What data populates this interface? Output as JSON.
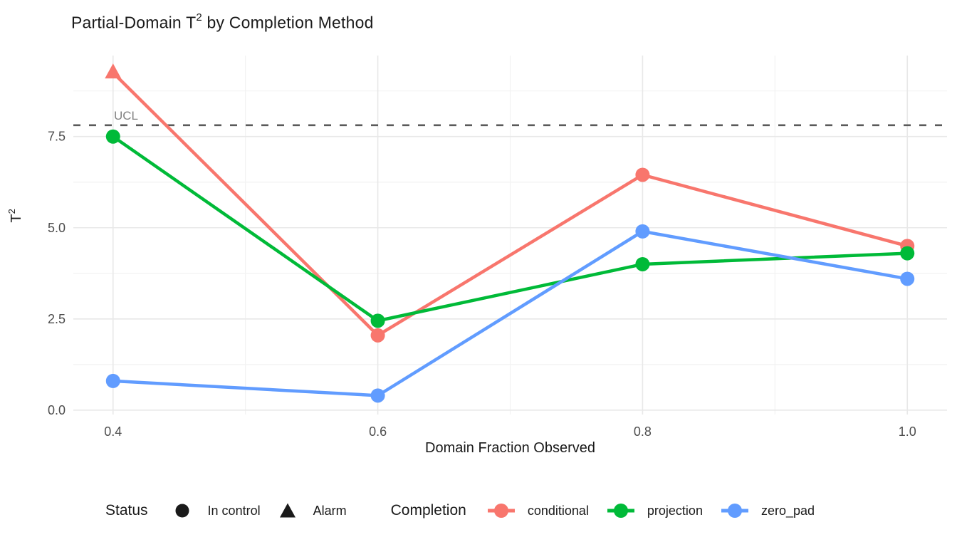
{
  "title": {
    "prefix": "Partial-Domain T",
    "superscript": "2",
    "suffix": " by Completion Method"
  },
  "axes": {
    "x": {
      "title": "Domain Fraction Observed",
      "tick_labels": [
        "0.4",
        "0.6",
        "0.8",
        "1.0"
      ]
    },
    "y": {
      "title_base": "T",
      "title_superscript": "2",
      "tick_labels": [
        "0.0",
        "2.5",
        "5.0",
        "7.5"
      ]
    }
  },
  "reference": {
    "label": "UCL",
    "value": 7.81,
    "line_color": "#5A5A5A",
    "label_color": "#828282"
  },
  "legend": {
    "status": {
      "title": "Status",
      "marker_color": "#1A1A1A",
      "items": [
        {
          "label": "In control",
          "marker": "circle"
        },
        {
          "label": "Alarm",
          "marker": "triangle"
        }
      ]
    },
    "completion": {
      "title": "Completion",
      "items": [
        {
          "label": "conditional",
          "color": "#F8766D"
        },
        {
          "label": "projection",
          "color": "#00BA38"
        },
        {
          "label": "zero_pad",
          "color": "#619CFF"
        }
      ]
    }
  },
  "chart_data": {
    "type": "line",
    "title": "Partial-Domain T^2 by Completion Method",
    "xlabel": "Domain Fraction Observed",
    "ylabel": "T^2",
    "x": [
      0.4,
      0.6,
      0.8,
      1.0
    ],
    "series": [
      {
        "name": "conditional",
        "color": "#F8766D",
        "values": [
          9.25,
          2.05,
          6.45,
          4.5
        ],
        "status": [
          "Alarm",
          "In control",
          "In control",
          "In control"
        ]
      },
      {
        "name": "projection",
        "color": "#00BA38",
        "values": [
          7.5,
          2.45,
          4.0,
          4.3
        ],
        "status": [
          "In control",
          "In control",
          "In control",
          "In control"
        ]
      },
      {
        "name": "zero_pad",
        "color": "#619CFF",
        "values": [
          0.8,
          0.4,
          4.9,
          3.6
        ],
        "status": [
          "In control",
          "In control",
          "In control",
          "In control"
        ]
      }
    ],
    "reference_line": {
      "label": "UCL",
      "value": 7.81,
      "style": "dashed"
    },
    "xlim": [
      0.37,
      1.03
    ],
    "ylim": [
      -0.12,
      9.72
    ],
    "x_major_ticks": [
      0.4,
      0.6,
      0.8,
      1.0
    ],
    "y_major_ticks": [
      0,
      2.5,
      5,
      7.5
    ],
    "x_minor_ticks": [
      0.5,
      0.7,
      0.9
    ],
    "y_minor_ticks": [
      1.25,
      3.75,
      6.25,
      8.75
    ],
    "grid": true,
    "legend_position": "bottom"
  }
}
